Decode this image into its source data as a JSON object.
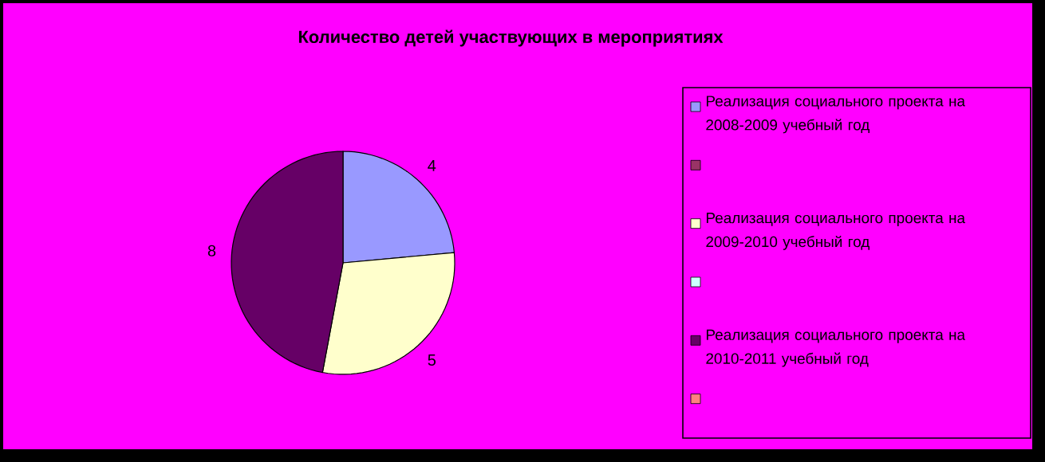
{
  "chart_data": {
    "type": "pie",
    "title": "Количество детей участвующих в мероприятиях",
    "categories": [
      "Реализация социального проекта на 2008-2009 учебный год",
      null,
      "Реализация социального проекта на 2009-2010 учебный год",
      null,
      "Реализация социального проекта на 2010-2011 учебный год",
      null
    ],
    "values": [
      4,
      0,
      5,
      0,
      8,
      0
    ],
    "value_labels": [
      "4",
      null,
      "5",
      null,
      "8",
      null
    ],
    "colors": [
      "#9999ff",
      "#993366",
      "#ffffcc",
      "#ccffff",
      "#660066",
      "#ff8080"
    ],
    "legend": "right"
  }
}
